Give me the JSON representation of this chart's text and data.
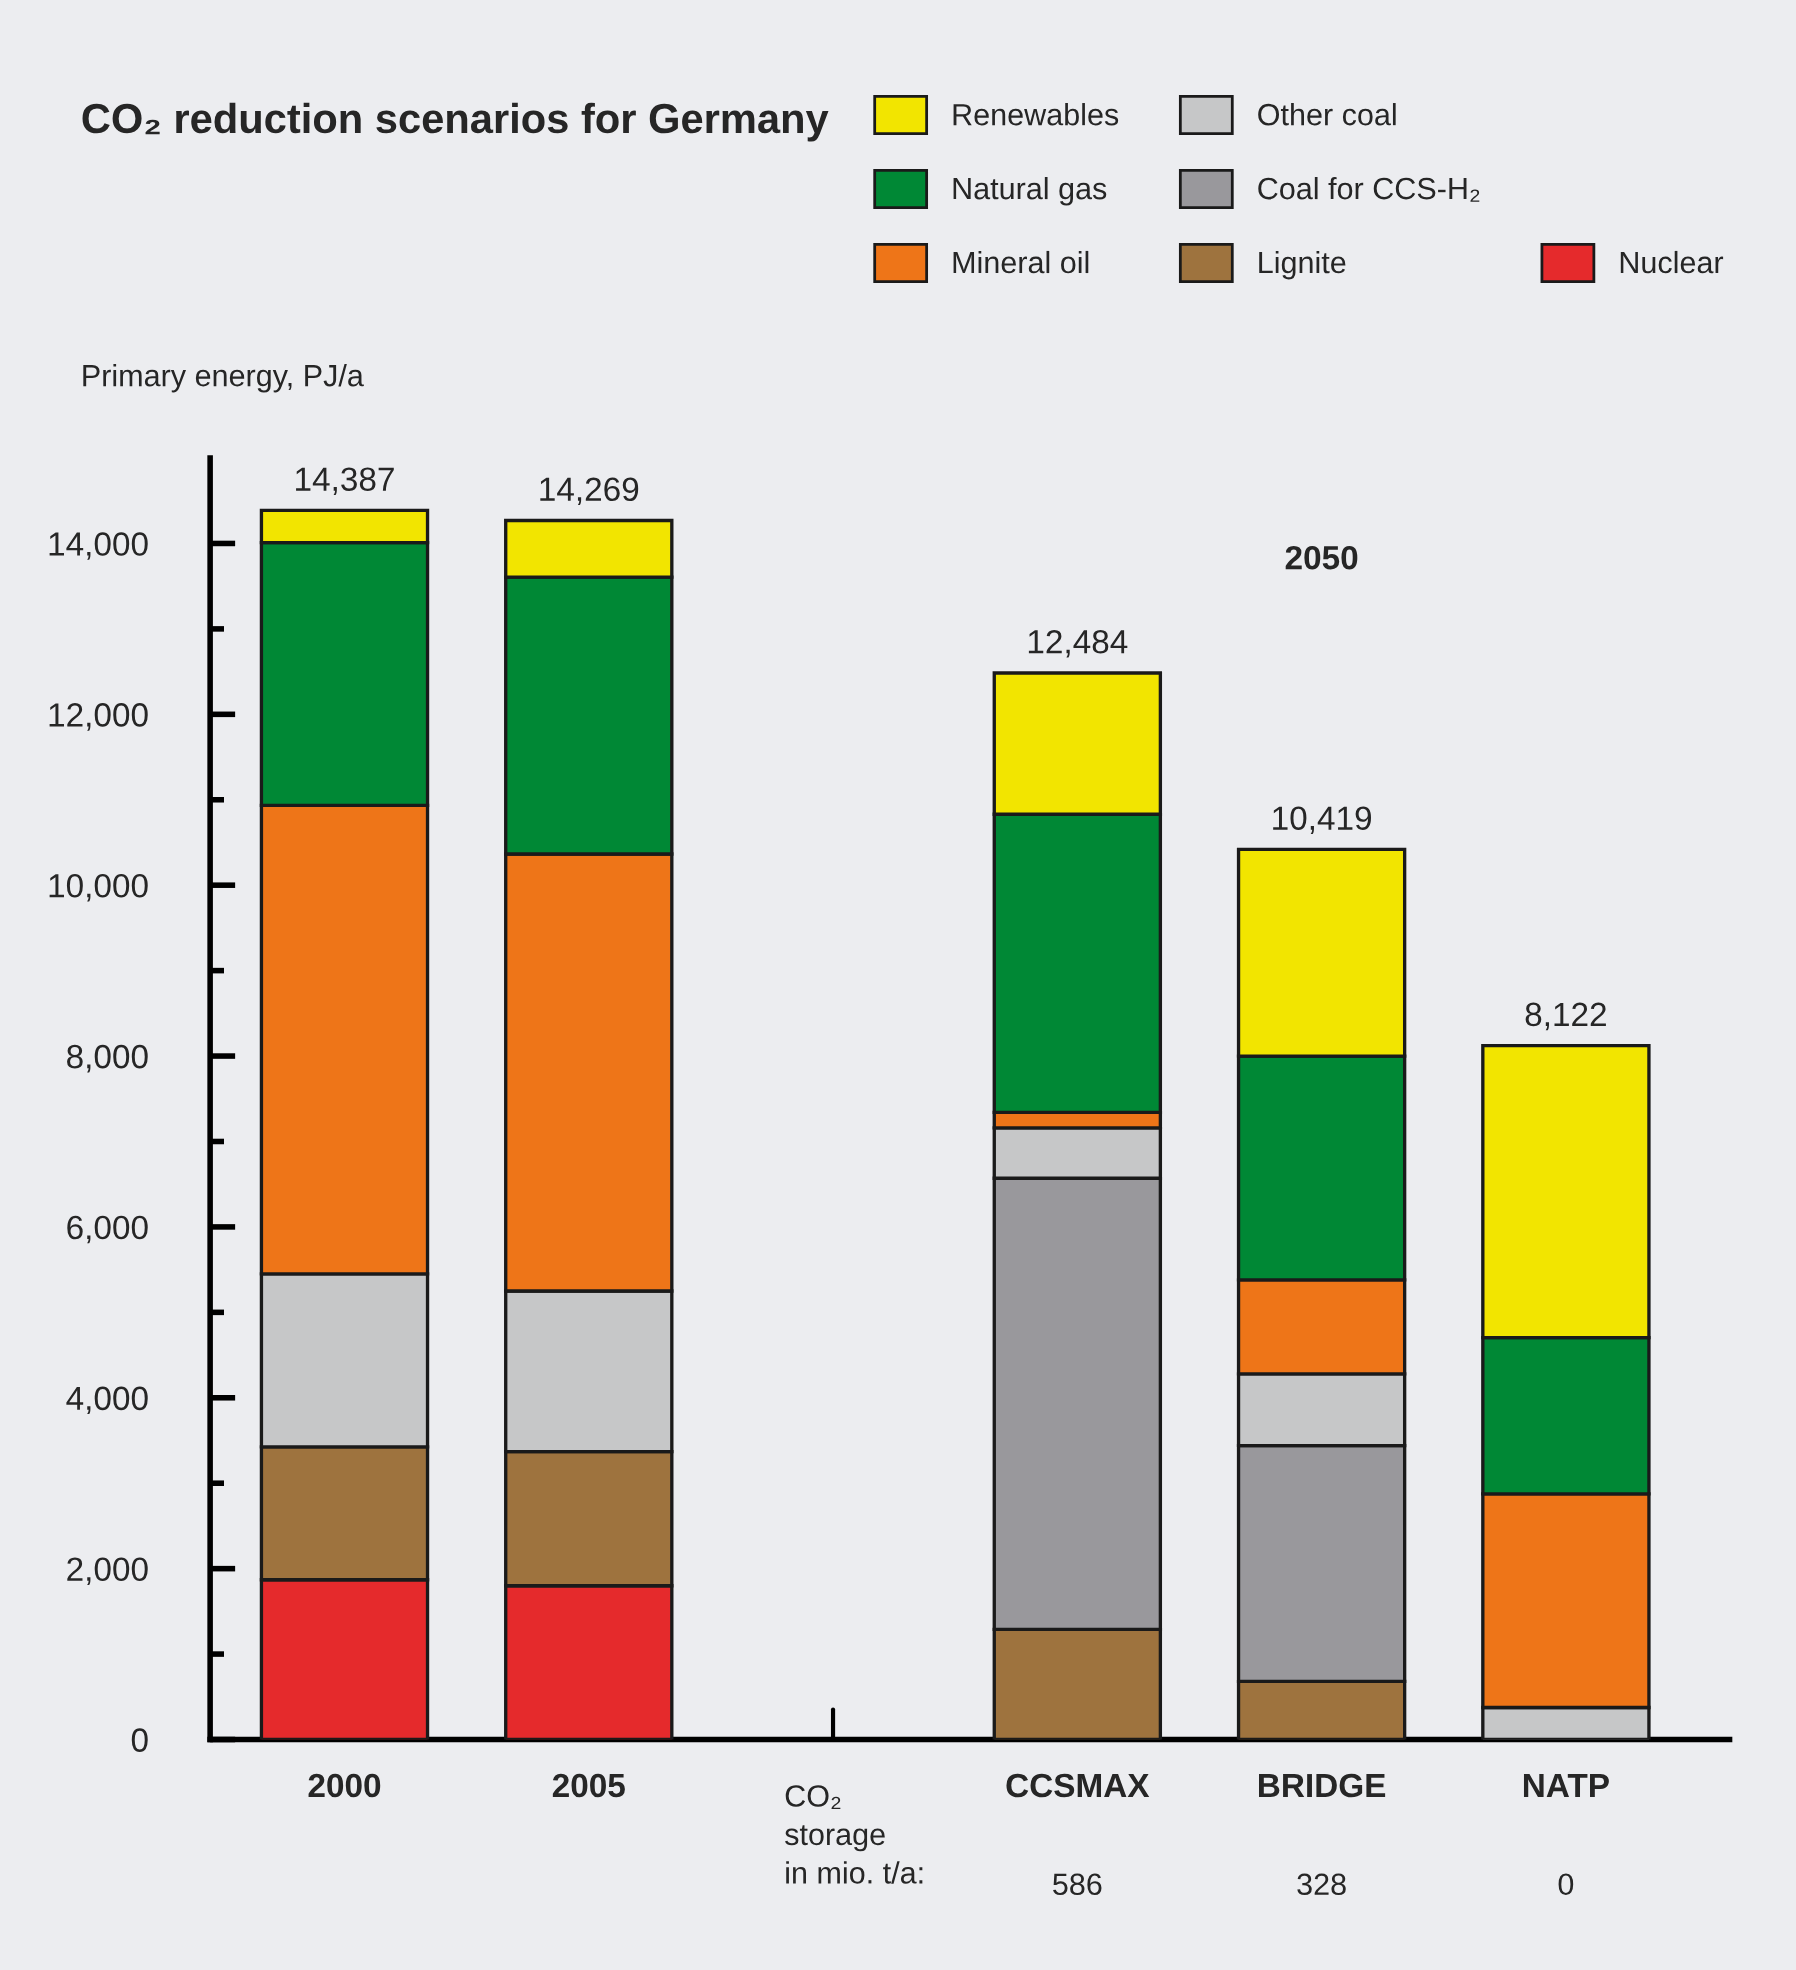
{
  "chart_data": {
    "type": "bar",
    "stacked": true,
    "title": "CO₂ reduction scenarios for Germany",
    "ylabel": "Primary energy, PJ/a",
    "categories": [
      "2000",
      "2005",
      null,
      "CCSMAX",
      "BRIDGE",
      "NATP"
    ],
    "series": [
      {
        "name": "Nuclear",
        "color": "#e52a2c",
        "values": [
          1870,
          1800,
          null,
          null,
          null,
          null
        ]
      },
      {
        "name": "Lignite",
        "color": "#9e733e",
        "values": [
          1555,
          1570,
          null,
          1290,
          680,
          null
        ]
      },
      {
        "name": "Coal for CCS-H₂",
        "color": "#99989c",
        "values": [
          null,
          null,
          null,
          5280,
          2760,
          null
        ]
      },
      {
        "name": "Other coal",
        "color": "#c6c7c8",
        "values": [
          2025,
          1880,
          null,
          590,
          840,
          375
        ]
      },
      {
        "name": "Mineral oil",
        "color": "#ee7518",
        "values": [
          5485,
          5115,
          null,
          180,
          1100,
          2500
        ]
      },
      {
        "name": "Natural gas",
        "color": "#008835",
        "values": [
          3075,
          3240,
          null,
          3490,
          2620,
          1830
        ]
      },
      {
        "name": "Renewables",
        "color": "#f2e500",
        "values": [
          377,
          664,
          null,
          1654,
          2419,
          3417
        ]
      }
    ],
    "totals": [
      "14,387",
      "14,269",
      null,
      "12,484",
      "10,419",
      "8,122"
    ],
    "ylim": [
      0,
      15000
    ],
    "yticks": [
      0,
      {
        "value": 1000,
        "label": null
      },
      {
        "value": 2000,
        "label": "2,000"
      },
      {
        "value": 3000,
        "label": null
      },
      {
        "value": 4000,
        "label": "4,000"
      },
      {
        "value": 5000,
        "label": null
      },
      {
        "value": 6000,
        "label": "6,000"
      },
      {
        "value": 7000,
        "label": null
      },
      {
        "value": 8000,
        "label": "8,000"
      },
      {
        "value": 9000,
        "label": null
      },
      {
        "value": 10000,
        "label": "10,000"
      },
      {
        "value": 11000,
        "label": null
      },
      {
        "value": 12000,
        "label": "12,000"
      },
      {
        "value": 13000,
        "label": null
      },
      {
        "value": 14000,
        "label": "14,000"
      }
    ],
    "annotations": [
      "2050",
      "CO₂\nstorage\nin mio. t/a:",
      "586",
      "328",
      "0"
    ],
    "legend": "top right",
    "grid": false
  }
}
